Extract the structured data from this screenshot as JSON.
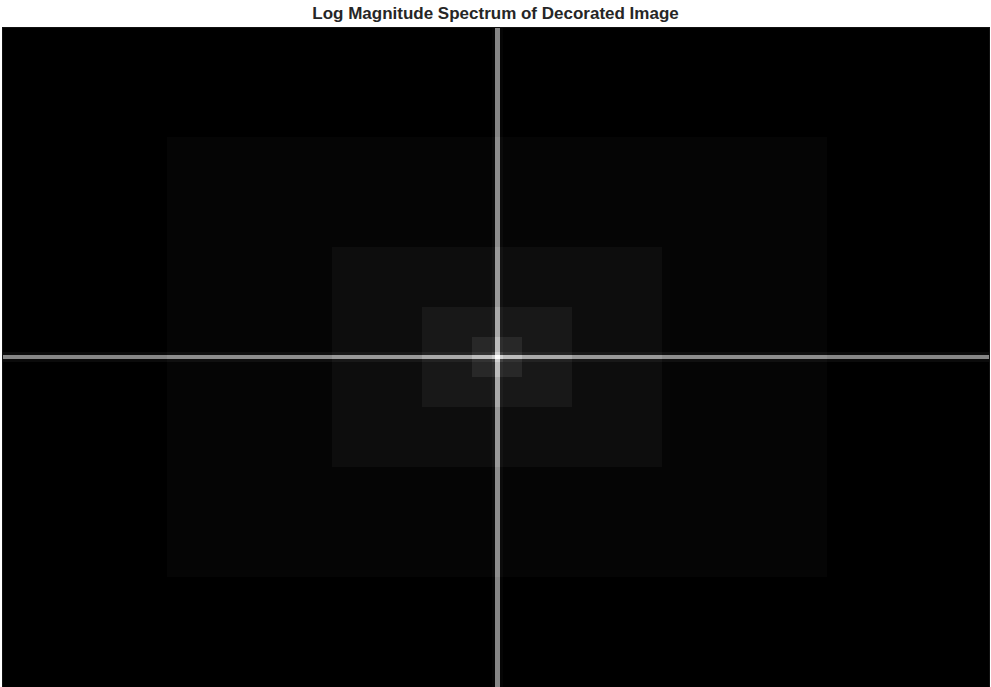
{
  "chart_data": {
    "type": "heatmap",
    "title": "Log Magnitude Spectrum of Decorated Image",
    "x_edges": [
      0,
      165,
      330,
      420,
      470,
      490,
      493,
      498,
      501,
      520,
      570,
      660,
      825,
      987
    ],
    "y_edges": [
      0,
      110,
      220,
      280,
      310,
      325,
      328,
      332,
      335,
      350,
      380,
      440,
      550,
      660
    ],
    "cells": [
      [
        0.05,
        0.05,
        0.05,
        0.05,
        0.05,
        0.07,
        0.55,
        0.07,
        0.05,
        0.05,
        0.05,
        0.05,
        0.05
      ],
      [
        0.05,
        0.07,
        0.07,
        0.07,
        0.07,
        0.09,
        0.58,
        0.09,
        0.07,
        0.07,
        0.07,
        0.07,
        0.05
      ],
      [
        0.05,
        0.07,
        0.1,
        0.1,
        0.1,
        0.12,
        0.62,
        0.12,
        0.1,
        0.1,
        0.1,
        0.07,
        0.05
      ],
      [
        0.05,
        0.07,
        0.1,
        0.14,
        0.14,
        0.16,
        0.68,
        0.16,
        0.14,
        0.14,
        0.1,
        0.07,
        0.05
      ],
      [
        0.05,
        0.07,
        0.1,
        0.14,
        0.2,
        0.22,
        0.75,
        0.22,
        0.2,
        0.14,
        0.1,
        0.07,
        0.05
      ],
      [
        0.09,
        0.11,
        0.14,
        0.18,
        0.24,
        0.3,
        0.82,
        0.3,
        0.24,
        0.18,
        0.14,
        0.11,
        0.09
      ],
      [
        0.55,
        0.58,
        0.62,
        0.68,
        0.75,
        0.82,
        1.0,
        0.82,
        0.75,
        0.68,
        0.62,
        0.58,
        0.55
      ],
      [
        0.09,
        0.11,
        0.14,
        0.18,
        0.24,
        0.3,
        0.82,
        0.3,
        0.24,
        0.18,
        0.14,
        0.11,
        0.09
      ],
      [
        0.05,
        0.07,
        0.1,
        0.14,
        0.2,
        0.22,
        0.75,
        0.22,
        0.2,
        0.14,
        0.1,
        0.07,
        0.05
      ],
      [
        0.05,
        0.07,
        0.1,
        0.14,
        0.14,
        0.16,
        0.68,
        0.16,
        0.14,
        0.14,
        0.1,
        0.07,
        0.05
      ],
      [
        0.05,
        0.07,
        0.1,
        0.1,
        0.1,
        0.12,
        0.62,
        0.12,
        0.1,
        0.1,
        0.1,
        0.07,
        0.05
      ],
      [
        0.05,
        0.07,
        0.07,
        0.07,
        0.07,
        0.09,
        0.58,
        0.09,
        0.07,
        0.07,
        0.07,
        0.07,
        0.05
      ],
      [
        0.05,
        0.05,
        0.05,
        0.05,
        0.05,
        0.07,
        0.55,
        0.07,
        0.05,
        0.05,
        0.05,
        0.05,
        0.05
      ]
    ],
    "xlim": [
      0,
      987
    ],
    "ylim": [
      660,
      0
    ],
    "xticks": [],
    "yticks": [],
    "tick_labels": false,
    "color": "gray"
  }
}
